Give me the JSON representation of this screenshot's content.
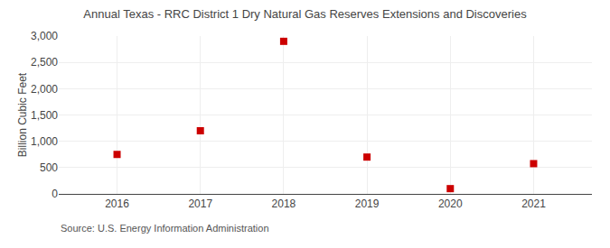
{
  "chart_data": {
    "type": "scatter",
    "title": "Annual Texas - RRC District 1 Dry Natural Gas Reserves Extensions and Discoveries",
    "ylabel": "Billion Cubic Feet",
    "annotations": [
      "Source: U.S. Energy Information Administration"
    ],
    "x": [
      2016,
      2017,
      2018,
      2019,
      2020,
      2021
    ],
    "values": [
      750,
      1200,
      2900,
      700,
      100,
      575
    ],
    "color": "#cc0000",
    "marker": "square",
    "xlim": [
      2015.3,
      2021.7
    ],
    "xticks": [
      2016,
      2017,
      2018,
      2019,
      2020,
      2021
    ],
    "ylim": [
      0,
      3000
    ],
    "yticks": [
      0,
      500,
      {
        "value": 1000,
        "label": "1,000"
      },
      {
        "value": 1500,
        "label": "1,500"
      },
      {
        "value": 2000,
        "label": "2,000"
      },
      {
        "value": 2500,
        "label": "2,500"
      },
      {
        "value": 3000,
        "label": "3,000"
      }
    ],
    "grid": true
  }
}
